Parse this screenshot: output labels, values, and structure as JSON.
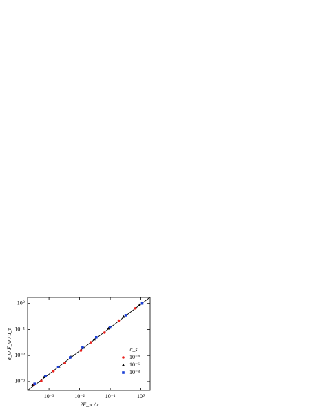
{
  "chart_data": {
    "type": "scatter",
    "xlabel": "2F_w / ε",
    "ylabel": "σ_w F_w / u_τ",
    "xscale": "log",
    "yscale": "log",
    "xlim": [
      0.0002,
      2
    ],
    "ylim": [
      0.00045,
      1.7
    ],
    "xticks": [
      {
        "value": 0.001,
        "label": "10⁻³"
      },
      {
        "value": 0.01,
        "label": "10⁻²"
      },
      {
        "value": 0.1,
        "label": "10⁻¹"
      },
      {
        "value": 1,
        "label": "10⁰"
      }
    ],
    "yticks": [
      {
        "value": 0.001,
        "label": "10⁻³"
      },
      {
        "value": 0.01,
        "label": "10⁻²"
      },
      {
        "value": 0.1,
        "label": "10⁻¹"
      },
      {
        "value": 1,
        "label": "10⁰"
      }
    ],
    "legend_title": "σ_s",
    "legend_position": "lower right",
    "reference_line": {
      "color": "#000000",
      "x": [
        0.0002,
        1.95
      ],
      "y": [
        0.00045,
        1.7
      ]
    },
    "series": [
      {
        "name": "10⁻⁴",
        "color": "#e8211d",
        "marker": "circle",
        "x": [
          0.00032,
          0.00056,
          0.0014,
          0.0033,
          0.011,
          0.023,
          0.065,
          0.19,
          0.66
        ],
        "y": [
          0.00077,
          0.00105,
          0.0025,
          0.0051,
          0.0155,
          0.032,
          0.076,
          0.22,
          0.65
        ]
      },
      {
        "name": "10⁻⁶",
        "color": "#000000",
        "marker": "triangle",
        "x": [
          0.00029,
          0.0007,
          0.0021,
          0.0052,
          0.013,
          0.03,
          0.088,
          0.27,
          0.9
        ],
        "y": [
          0.00073,
          0.0015,
          0.0038,
          0.0089,
          0.02,
          0.042,
          0.11,
          0.31,
          0.88
        ]
      },
      {
        "name": "10⁻⁸",
        "color": "#1a3fd6",
        "marker": "square",
        "x": [
          0.00034,
          0.00077,
          0.002,
          0.0049,
          0.0125,
          0.035,
          0.098,
          0.32,
          1.1
        ],
        "y": [
          0.00082,
          0.0016,
          0.0036,
          0.0084,
          0.02,
          0.05,
          0.12,
          0.35,
          1.0
        ]
      }
    ]
  }
}
